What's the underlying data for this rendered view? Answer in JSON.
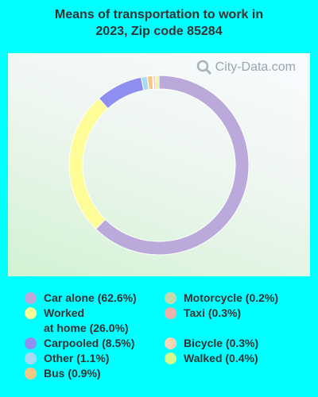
{
  "title_line1": "Means of transportation to work in",
  "title_line2": "2023, Zip code 85284",
  "watermark": "City-Data.com",
  "chart_data": {
    "type": "pie",
    "style": "donut",
    "title": "Means of transportation to work in 2023, Zip code 85284",
    "slices": [
      {
        "label": "Car alone (62.6%)",
        "value": 62.6,
        "color": "#bba9db"
      },
      {
        "label": "Worked\nat home (26.0%)",
        "value": 26.0,
        "color": "#fdfc97"
      },
      {
        "label": "Carpooled (8.5%)",
        "value": 8.5,
        "color": "#8e8ff0"
      },
      {
        "label": "Other (1.1%)",
        "value": 1.1,
        "color": "#a9daf4"
      },
      {
        "label": "Bus (0.9%)",
        "value": 0.9,
        "color": "#f6c781"
      },
      {
        "label": "Motorcycle (0.2%)",
        "value": 0.2,
        "color": "#c2dbad"
      },
      {
        "label": "Taxi (0.3%)",
        "value": 0.3,
        "color": "#f0b0aa"
      },
      {
        "label": "Bicycle (0.3%)",
        "value": 0.3,
        "color": "#f8d6b5"
      },
      {
        "label": "Walked (0.4%)",
        "value": 0.4,
        "color": "#d6f98e"
      }
    ],
    "legend_position": "bottom"
  }
}
